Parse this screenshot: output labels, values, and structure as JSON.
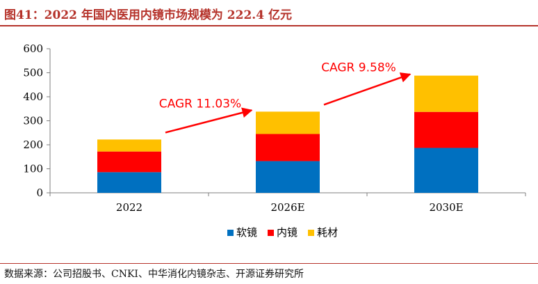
{
  "title": "图41：2022 年国内医用内镜市场规模为 222.4 亿元",
  "source": "数据来源：公司招股书、CNKI、中华消化内镜杂志、开源证券研究所",
  "colors": {
    "title": "#b5322a",
    "soft_scope": "#0070c0",
    "endoscope": "#ff0000",
    "consumables": "#ffc000",
    "annotation": "#ff0000"
  },
  "chart_data": {
    "type": "bar",
    "stacked": true,
    "categories": [
      "2022",
      "2026E",
      "2030E"
    ],
    "series": [
      {
        "name": "软镜",
        "values": [
          86,
          132,
          187
        ]
      },
      {
        "name": "内镜",
        "values": [
          86,
          113,
          150
        ]
      },
      {
        "name": "耗材",
        "values": [
          50,
          93,
          151
        ]
      }
    ],
    "ylim": [
      0,
      600
    ],
    "yticks": [
      0,
      100,
      200,
      300,
      400,
      500,
      600
    ],
    "grid": false,
    "legend_position": "bottom",
    "annotations": [
      {
        "text": "CAGR 11.03%",
        "from": "2022",
        "to": "2026E"
      },
      {
        "text": "CAGR 9.58%",
        "from": "2026E",
        "to": "2030E"
      }
    ]
  }
}
